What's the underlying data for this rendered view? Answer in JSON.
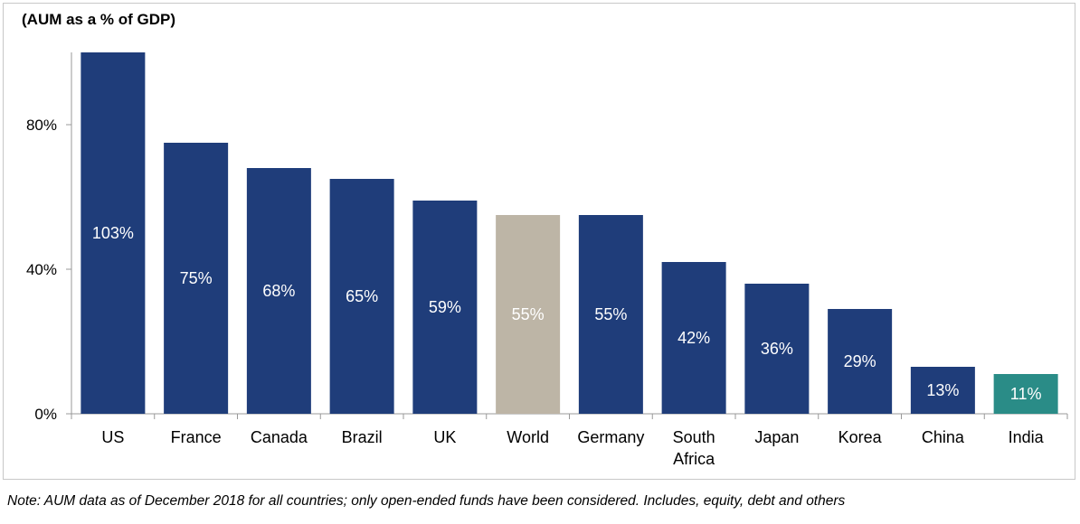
{
  "chart_data": {
    "type": "bar",
    "title": "(AUM as a % of GDP)",
    "xlabel": "",
    "ylabel": "",
    "categories": [
      "US",
      "France",
      "Canada",
      "Brazil",
      "UK",
      "World",
      "Germany",
      "South Africa",
      "Japan",
      "Korea",
      "China",
      "India"
    ],
    "values": [
      103,
      75,
      68,
      65,
      59,
      55,
      55,
      42,
      36,
      29,
      13,
      11
    ],
    "data_labels": [
      "103%",
      "75%",
      "68%",
      "65%",
      "59%",
      "55%",
      "55%",
      "42%",
      "36%",
      "29%",
      "13%",
      "11%"
    ],
    "yticks": [
      0,
      40,
      80
    ],
    "ytick_labels": [
      "0%",
      "40%",
      "80%"
    ],
    "ylim": [
      0,
      100
    ],
    "grid": false,
    "legend": "none",
    "colors": {
      "default": "#1f3d7a",
      "World": "#bdb5a6",
      "India": "#2a8c87"
    }
  },
  "note": "Note: AUM data as of December 2018 for all countries; only open-ended funds have been considered. Includes, equity, debt and others"
}
